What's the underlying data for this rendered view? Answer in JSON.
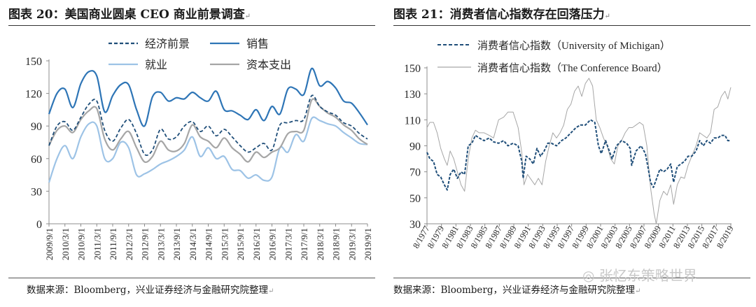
{
  "panels": [
    {
      "title": "图表 20：美国商业圆桌 CEO 商业前景调查",
      "source": "数据来源：Bloomberg，兴业证券经济与金融研究院整理"
    },
    {
      "title": "图表 21：消费者信心指数存在回落压力",
      "source": "数据来源：Bloomberg，兴业证券经济与金融研究院整理"
    }
  ],
  "mark_symbol": "↵",
  "watermark": "张忆东策略世界",
  "chart_data": [
    {
      "type": "line",
      "title": "美国商业圆桌 CEO 商业前景调查",
      "x": [
        "2009/9/1",
        "2009/12/1",
        "2010/3/1",
        "2010/6/1",
        "2010/9/1",
        "2010/12/1",
        "2011/3/1",
        "2011/6/1",
        "2011/9/1",
        "2011/12/1",
        "2012/3/1",
        "2012/6/1",
        "2012/9/1",
        "2012/12/1",
        "2013/3/1",
        "2013/6/1",
        "2013/9/1",
        "2013/12/1",
        "2014/3/1",
        "2014/6/1",
        "2014/9/1",
        "2014/12/1",
        "2015/3/1",
        "2015/6/1",
        "2015/9/1",
        "2015/12/1",
        "2016/3/1",
        "2016/6/1",
        "2016/9/1",
        "2016/12/1",
        "2017/3/1",
        "2017/6/1",
        "2017/9/1",
        "2017/12/1",
        "2018/3/1",
        "2018/6/1",
        "2018/9/1",
        "2018/12/1",
        "2019/3/1",
        "2019/6/1",
        "2019/9/1"
      ],
      "xticks": [
        "2009/9/1",
        "2010/3/1",
        "2010/9/1",
        "2011/3/1",
        "2011/9/1",
        "2012/3/1",
        "2012/9/1",
        "2013/3/1",
        "2013/9/1",
        "2014/3/1",
        "2014/9/1",
        "2015/3/1",
        "2015/9/1",
        "2016/3/1",
        "2016/9/1",
        "2017/3/1",
        "2017/9/1",
        "2018/3/1",
        "2018/9/1",
        "2019/3/1",
        "2019/9/1"
      ],
      "ylim": [
        0,
        150
      ],
      "yticks": [
        0,
        30,
        60,
        90,
        120,
        150
      ],
      "legend_position": "top",
      "series": [
        {
          "name": "经济前景",
          "style": "dashed",
          "color": "#1f4e79",
          "values": [
            72,
            90,
            94,
            86,
            98,
            110,
            113,
            86,
            76,
            88,
            96,
            83,
            64,
            68,
            87,
            78,
            80,
            90,
            94,
            85,
            90,
            81,
            87,
            80,
            72,
            66,
            70,
            74,
            68,
            91,
            93,
            95,
            96,
            118,
            108,
            103,
            100,
            93,
            90,
            83,
            78
          ]
        },
        {
          "name": "销售",
          "style": "solid",
          "color": "#2e75b6",
          "values": [
            101,
            120,
            124,
            107,
            129,
            140,
            136,
            103,
            118,
            128,
            128,
            105,
            90,
            117,
            121,
            113,
            116,
            115,
            121,
            116,
            113,
            122,
            105,
            104,
            100,
            96,
            105,
            95,
            108,
            101,
            124,
            124,
            119,
            143,
            127,
            131,
            125,
            113,
            111,
            102,
            91
          ]
        },
        {
          "name": "就业",
          "style": "solid",
          "color": "#9dc3e6",
          "values": [
            38,
            60,
            72,
            60,
            80,
            92,
            90,
            60,
            60,
            75,
            70,
            45,
            46,
            50,
            55,
            58,
            62,
            68,
            80,
            62,
            70,
            60,
            62,
            50,
            49,
            42,
            45,
            40,
            43,
            70,
            66,
            82,
            76,
            97,
            95,
            92,
            90,
            84,
            79,
            74,
            73
          ]
        },
        {
          "name": "资本支出",
          "style": "solid",
          "color": "#a6a6a6",
          "values": [
            72,
            86,
            90,
            84,
            96,
            104,
            106,
            78,
            68,
            78,
            85,
            70,
            57,
            62,
            76,
            68,
            67,
            74,
            91,
            80,
            76,
            70,
            79,
            70,
            64,
            57,
            66,
            61,
            66,
            70,
            83,
            85,
            86,
            114,
            108,
            102,
            98,
            91,
            86,
            78,
            73
          ]
        }
      ]
    },
    {
      "type": "line",
      "title": "消费者信心指数存在回落压力",
      "xticks": [
        "8/1977",
        "8/1979",
        "8/1981",
        "8/1983",
        "8/1985",
        "8/1987",
        "8/1989",
        "8/1991",
        "8/1993",
        "8/1995",
        "8/1997",
        "8/1999",
        "8/2001",
        "8/2003",
        "8/2005",
        "8/2007",
        "8/2009",
        "8/2011",
        "8/2013",
        "8/2015",
        "8/2017",
        "8/2019"
      ],
      "ylim": [
        30,
        150
      ],
      "yticks": [
        30,
        50,
        70,
        90,
        110,
        130,
        150
      ],
      "legend_position": "top",
      "series": [
        {
          "name": "消费者信心指数（University of Michigan）",
          "style": "dashed",
          "color": "#1f4e79",
          "x": [
            1977.6,
            1978.0,
            1978.5,
            1979.0,
            1979.5,
            1980.0,
            1980.4,
            1980.8,
            1981.3,
            1981.8,
            1982.3,
            1982.8,
            1983.3,
            1983.8,
            1984.3,
            1984.8,
            1985.5,
            1986.2,
            1986.8,
            1987.5,
            1988.2,
            1988.8,
            1989.5,
            1990.2,
            1990.7,
            1990.9,
            1991.3,
            1991.8,
            1992.3,
            1992.8,
            1993.3,
            1993.8,
            1994.3,
            1994.8,
            1995.5,
            1996.2,
            1996.8,
            1997.5,
            1998.2,
            1998.8,
            1999.5,
            2000.2,
            2000.8,
            2001.3,
            2001.7,
            2002.3,
            2002.8,
            2003.2,
            2003.8,
            2004.5,
            2005.2,
            2005.7,
            2005.9,
            2006.5,
            2007.2,
            2007.8,
            2008.2,
            2008.5,
            2008.9,
            2009.3,
            2009.8,
            2010.3,
            2010.8,
            2011.3,
            2011.7,
            2012.2,
            2012.7,
            2013.2,
            2013.7,
            2014.2,
            2014.8,
            2015.3,
            2015.8,
            2016.3,
            2016.8,
            2017.3,
            2017.8,
            2018.3,
            2018.8,
            2019.2,
            2019.6
          ],
          "values": [
            85,
            80,
            78,
            68,
            66,
            60,
            56,
            68,
            72,
            65,
            70,
            68,
            90,
            92,
            98,
            96,
            94,
            96,
            93,
            92,
            94,
            90,
            92,
            90,
            78,
            65,
            82,
            80,
            76,
            88,
            82,
            86,
            92,
            92,
            90,
            94,
            96,
            100,
            104,
            106,
            106,
            110,
            108,
            90,
            84,
            94,
            86,
            80,
            90,
            94,
            92,
            88,
            75,
            86,
            90,
            84,
            72,
            62,
            58,
            64,
            72,
            70,
            72,
            76,
            62,
            74,
            76,
            78,
            82,
            82,
            86,
            94,
            90,
            94,
            92,
            96,
            96,
            98,
            98,
            94,
            94
          ]
        },
        {
          "name": "消费者信心指数（The Conference Board）",
          "style": "solid",
          "color": "#a6a6a6",
          "x": [
            1977.6,
            1978.0,
            1978.5,
            1979.0,
            1979.5,
            1980.0,
            1980.4,
            1980.8,
            1981.3,
            1981.8,
            1982.3,
            1982.8,
            1983.3,
            1983.8,
            1984.3,
            1984.8,
            1985.5,
            1986.2,
            1986.8,
            1987.5,
            1988.2,
            1988.8,
            1989.5,
            1990.2,
            1990.7,
            1991.0,
            1991.5,
            1992.0,
            1992.5,
            1993.0,
            1993.5,
            1994.0,
            1994.5,
            1995.0,
            1995.5,
            1996.0,
            1996.5,
            1997.0,
            1997.5,
            1998.0,
            1998.5,
            1999.0,
            1999.5,
            2000.0,
            2000.5,
            2001.0,
            2001.5,
            2002.0,
            2002.5,
            2003.0,
            2003.5,
            2004.0,
            2004.5,
            2005.0,
            2005.5,
            2006.0,
            2006.5,
            2007.0,
            2007.5,
            2008.0,
            2008.5,
            2009.0,
            2009.3,
            2009.8,
            2010.3,
            2010.8,
            2011.3,
            2011.7,
            2012.2,
            2012.7,
            2013.2,
            2013.7,
            2014.2,
            2014.8,
            2015.3,
            2015.8,
            2016.3,
            2016.8,
            2017.3,
            2017.8,
            2018.3,
            2018.8,
            2019.2,
            2019.6
          ],
          "values": [
            104,
            108,
            108,
            100,
            88,
            80,
            75,
            86,
            80,
            70,
            60,
            55,
            80,
            96,
            102,
            100,
            100,
            98,
            96,
            110,
            112,
            116,
            116,
            104,
            85,
            60,
            68,
            64,
            60,
            65,
            60,
            78,
            90,
            100,
            96,
            100,
            106,
            118,
            122,
            132,
            136,
            128,
            138,
            142,
            136,
            110,
            104,
            96,
            90,
            80,
            76,
            90,
            94,
            100,
            104,
            104,
            106,
            108,
            106,
            90,
            58,
            38,
            27,
            48,
            55,
            52,
            60,
            45,
            60,
            66,
            65,
            75,
            82,
            90,
            100,
            98,
            96,
            100,
            118,
            120,
            128,
            132,
            126,
            135
          ]
        }
      ]
    }
  ]
}
